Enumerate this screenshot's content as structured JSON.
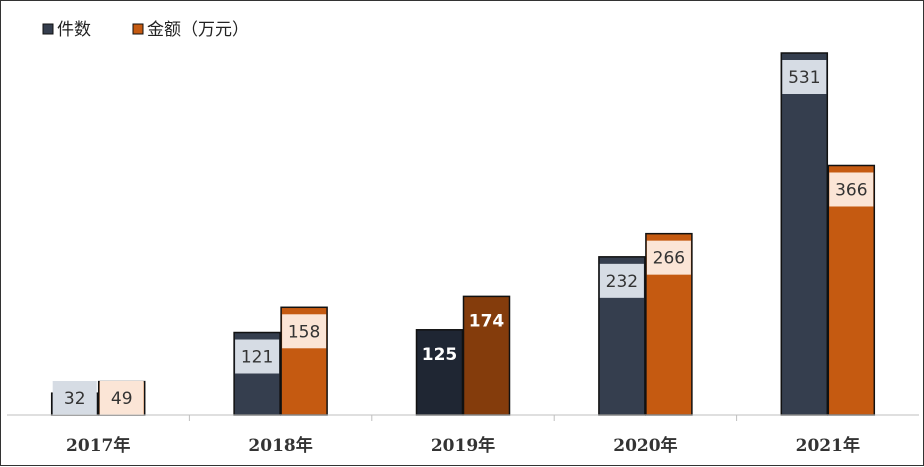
{
  "chart_data": {
    "type": "bar",
    "categories": [
      "2017年",
      "2018年",
      "2019年",
      "2020年",
      "2021年"
    ],
    "series": [
      {
        "name": "件数",
        "values": [
          32,
          121,
          125,
          232,
          531
        ],
        "color": "#353e4e",
        "label_bg": "#d6dce4",
        "label_color": "#333333"
      },
      {
        "name": "金额（万元）",
        "values": [
          49,
          158,
          174,
          266,
          366
        ],
        "color": "#c55a11",
        "label_bg": "#fbe5d6",
        "label_color": "#333333"
      }
    ],
    "highlight_category_index": 2,
    "highlight_colors": {
      "件数": "#1f2633",
      "金额（万元）": "#843c0c",
      "text": "#ffffff"
    },
    "ylim": [
      0,
      560
    ],
    "legend_position": "top-left",
    "grid": false
  }
}
